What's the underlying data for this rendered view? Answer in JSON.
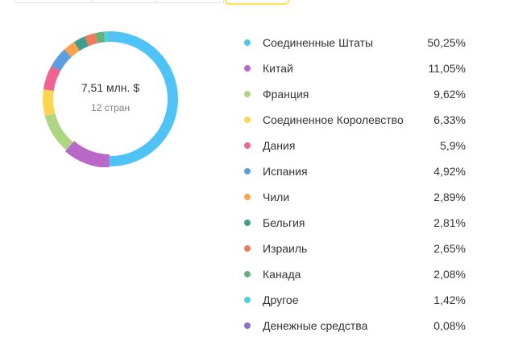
{
  "tabs": [
    {
      "label": "",
      "active": false
    },
    {
      "label": "",
      "active": false
    },
    {
      "label": "",
      "active": false
    },
    {
      "label": "",
      "active": true
    }
  ],
  "summary": {
    "total": "7,51 млн. $",
    "count": "12 стран"
  },
  "legend": [
    {
      "label": "Соединенные Штаты",
      "value": "50,25%",
      "color": "#4fc3f7"
    },
    {
      "label": "Китай",
      "value": "11,05%",
      "color": "#ba68c8"
    },
    {
      "label": "Франция",
      "value": "9,62%",
      "color": "#aed581"
    },
    {
      "label": "Соединенное Королевство",
      "value": "6,33%",
      "color": "#ffd54f"
    },
    {
      "label": "Дания",
      "value": "5,9%",
      "color": "#f06292"
    },
    {
      "label": "Испания",
      "value": "4,92%",
      "color": "#5c9ee0"
    },
    {
      "label": "Чили",
      "value": "2,89%",
      "color": "#ffa04d"
    },
    {
      "label": "Бельгия",
      "value": "2,81%",
      "color": "#3f9e8c"
    },
    {
      "label": "Израиль",
      "value": "2,65%",
      "color": "#f07a5a"
    },
    {
      "label": "Канада",
      "value": "2,08%",
      "color": "#66b07a"
    },
    {
      "label": "Другое",
      "value": "1,42%",
      "color": "#4dd0e1"
    },
    {
      "label": "Денежные средства",
      "value": "0,08%",
      "color": "#8c6ad8"
    }
  ],
  "chart_data": {
    "type": "pie",
    "subtype": "donut",
    "title": "7,51 млн. $",
    "subtitle": "12 стран",
    "categories": [
      "Соединенные Штаты",
      "Китай",
      "Франция",
      "Соединенное Королевство",
      "Дания",
      "Испания",
      "Чили",
      "Бельгия",
      "Израиль",
      "Канада",
      "Другое",
      "Денежные средства"
    ],
    "values": [
      50.25,
      11.05,
      9.62,
      6.33,
      5.9,
      4.92,
      2.89,
      2.81,
      2.65,
      2.08,
      1.42,
      0.08
    ],
    "colors": [
      "#4fc3f7",
      "#ba68c8",
      "#aed581",
      "#ffd54f",
      "#f06292",
      "#5c9ee0",
      "#ffa04d",
      "#3f9e8c",
      "#f07a5a",
      "#66b07a",
      "#4dd0e1",
      "#8c6ad8"
    ],
    "unit": "%",
    "highlighted": "Китай",
    "legend_position": "right"
  }
}
